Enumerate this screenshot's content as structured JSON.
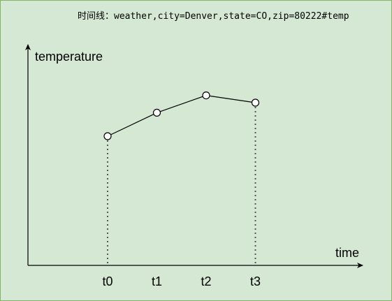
{
  "caption": "时间线：weather,city=Denver,state=CO,zip=80222#temp",
  "axes": {
    "y_label": "temperature",
    "x_label": "time"
  },
  "colors": {
    "background": "#d5e8d4",
    "border": "#82b366",
    "ink": "#000000",
    "marker_fill": "#ffffff",
    "guide": "#555555"
  },
  "chart_data": {
    "type": "line",
    "categories": [
      "t0",
      "t1",
      "t2",
      "t3"
    ],
    "values": [
      0,
      0.42,
      0.73,
      0.6
    ],
    "title": "",
    "xlabel": "time",
    "ylabel": "temperature",
    "grid": false
  }
}
